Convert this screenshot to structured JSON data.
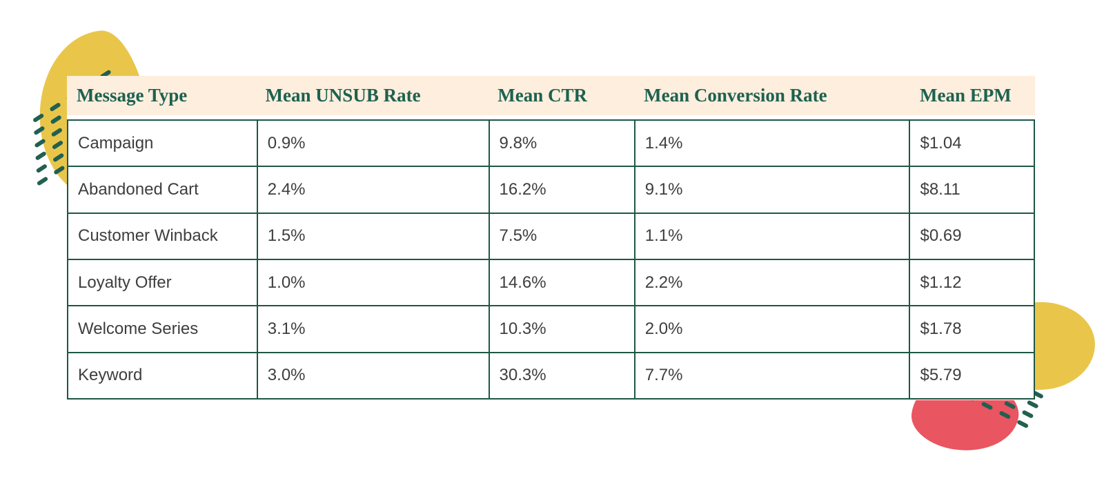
{
  "chart_data": {
    "type": "table",
    "columns": [
      "Message Type",
      "Mean UNSUB Rate",
      "Mean CTR",
      "Mean Conversion Rate",
      "Mean EPM"
    ],
    "rows": [
      [
        "Campaign",
        "0.9%",
        "9.8%",
        "1.4%",
        "$1.04"
      ],
      [
        "Abandoned Cart",
        "2.4%",
        "16.2%",
        "9.1%",
        "$8.11"
      ],
      [
        "Customer Winback",
        "1.5%",
        "7.5%",
        "1.1%",
        "$0.69"
      ],
      [
        "Loyalty Offer",
        "1.0%",
        "14.6%",
        "2.2%",
        "$1.12"
      ],
      [
        "Welcome Series",
        "3.1%",
        "10.3%",
        "2.0%",
        "$1.78"
      ],
      [
        "Keyword",
        "3.0%",
        "30.3%",
        "7.7%",
        "$5.79"
      ]
    ]
  },
  "colors": {
    "header_bg": "#fdeedd",
    "header_text": "#1d6150",
    "table_border": "#1d5743",
    "body_text": "#3e3e3e",
    "blob_yellow": "#e9c64a",
    "blob_red": "#e95560",
    "dash_green": "#216050"
  }
}
